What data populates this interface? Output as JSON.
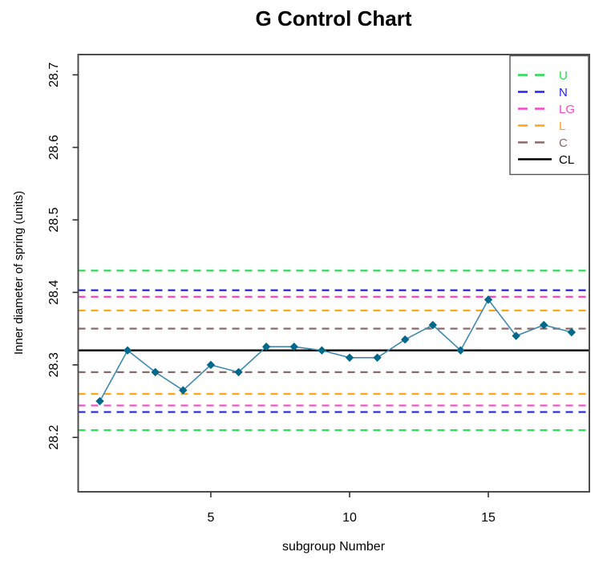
{
  "title": "G Control Chart",
  "chart_data": {
    "type": "line",
    "title": "G Control Chart",
    "xlabel": "subgroup Number",
    "ylabel": "Inner diameter of spring (units)",
    "x": [
      1,
      2,
      3,
      4,
      5,
      6,
      7,
      8,
      9,
      10,
      11,
      12,
      13,
      14,
      15,
      16,
      17,
      18
    ],
    "values": [
      28.25,
      28.32,
      28.29,
      28.265,
      28.3,
      28.29,
      28.325,
      28.325,
      28.32,
      28.31,
      28.31,
      28.335,
      28.355,
      28.32,
      28.39,
      28.34,
      28.355,
      28.345
    ],
    "series_name": "Inner diameter of spring",
    "marker": "diamond",
    "marker_color": "#00688B",
    "line_color": "#4189AE",
    "xlim": [
      0.22,
      18.64
    ],
    "ylim": [
      28.125,
      28.728
    ],
    "xticks": [
      "5",
      "10",
      "15"
    ],
    "xtick_values": [
      5,
      10,
      15
    ],
    "yticks": [
      "28.2",
      "28.3",
      "28.4",
      "28.5",
      "28.6",
      "28.7"
    ],
    "ytick_values": [
      28.2,
      28.3,
      28.4,
      28.5,
      28.6,
      28.7
    ],
    "grid": false,
    "center_line": 28.32,
    "control_lines": [
      {
        "label": "U",
        "color": "#1FDF4A",
        "style": "dashed",
        "limits": [
          28.43,
          28.21
        ]
      },
      {
        "label": "N",
        "color": "#2323F0",
        "style": "dashed",
        "limits": [
          28.403,
          28.235
        ]
      },
      {
        "label": "LG",
        "color": "#F747C8",
        "style": "dashed",
        "limits": [
          28.394,
          28.244
        ]
      },
      {
        "label": "L",
        "color": "#FFA319",
        "style": "dashed",
        "limits": [
          28.375,
          28.26
        ]
      },
      {
        "label": "C",
        "color": "#8B6969",
        "style": "dashed",
        "limits": [
          28.35,
          28.29
        ]
      },
      {
        "label": "CL",
        "color": "#000000",
        "style": "solid",
        "limits": [
          28.32
        ]
      }
    ],
    "legend": {
      "position": "top-right",
      "entries": [
        "U",
        "N",
        "LG",
        "L",
        "C",
        "CL"
      ]
    }
  }
}
